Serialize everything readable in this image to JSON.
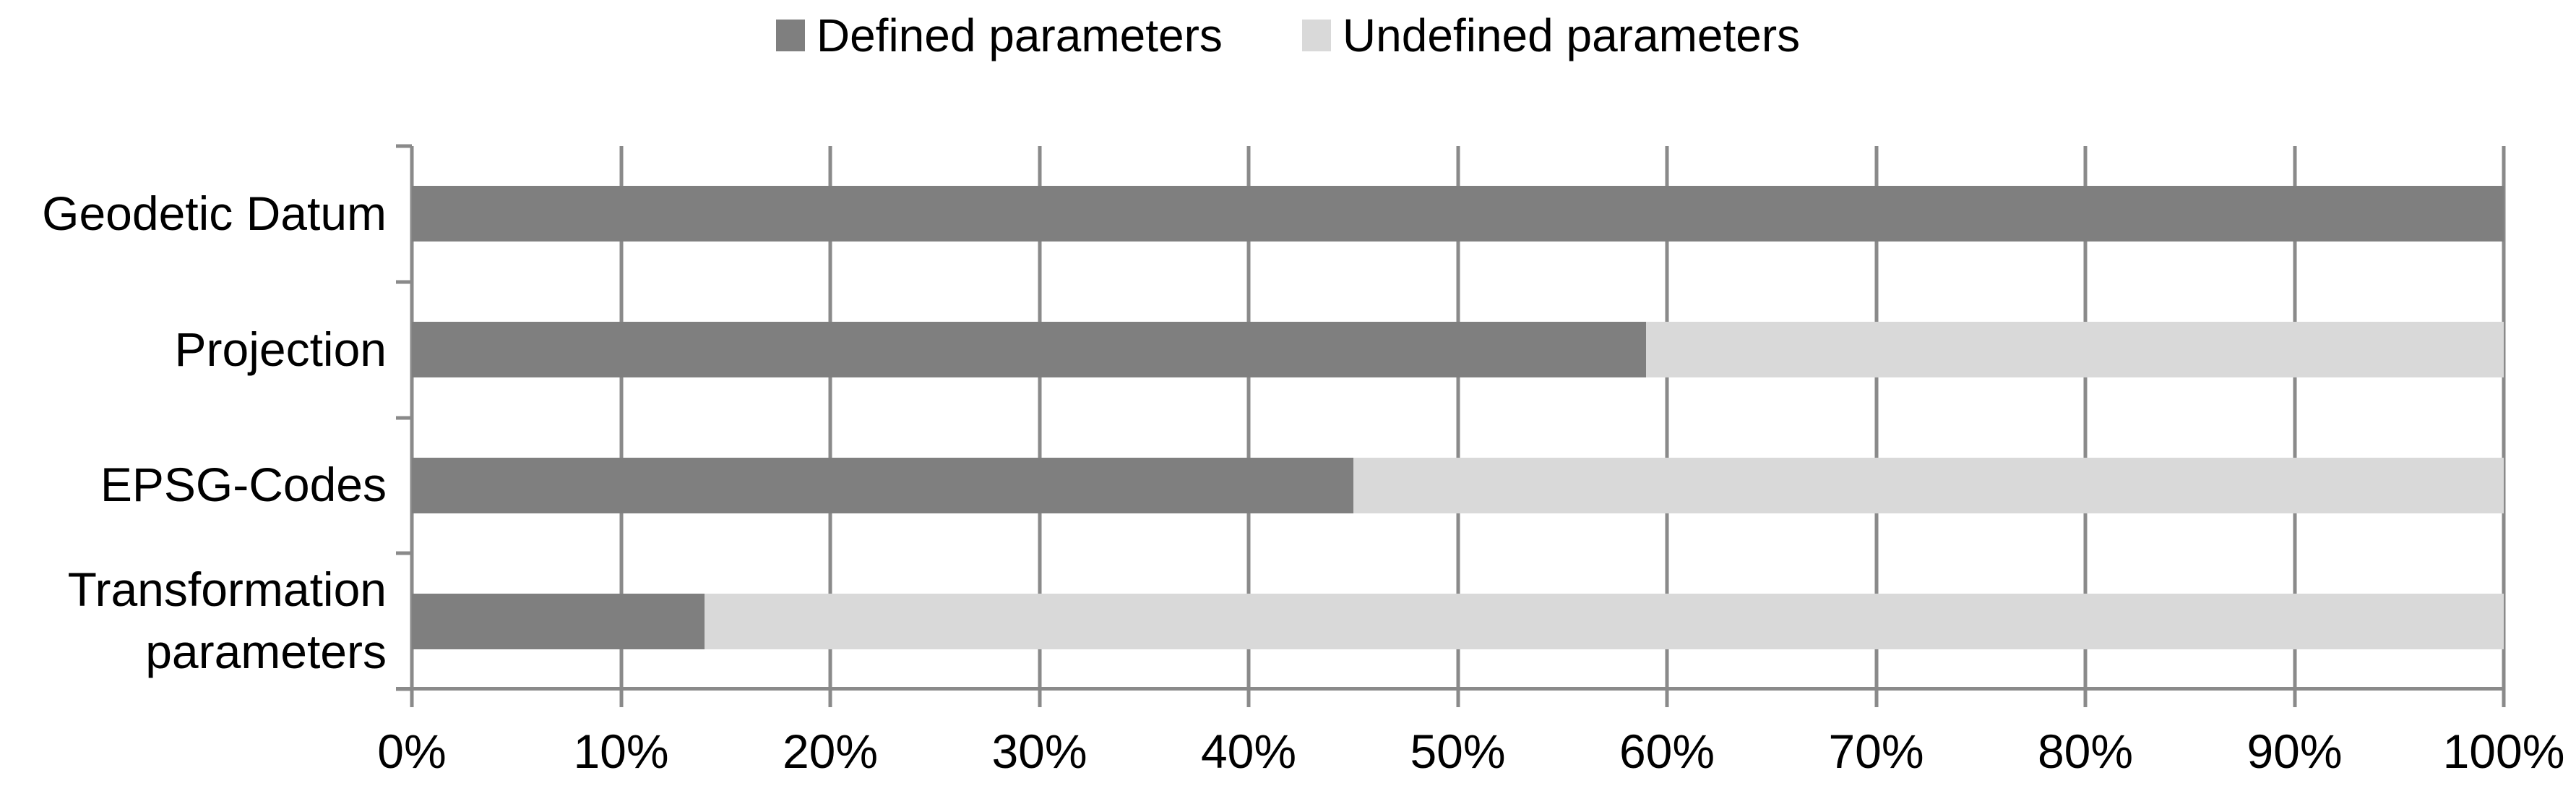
{
  "chart_data": {
    "type": "bar",
    "orientation": "horizontal",
    "stacked": true,
    "title": "",
    "xlabel": "",
    "ylabel": "",
    "categories": [
      "Geodetic Datum",
      "Projection",
      "EPSG-Codes",
      "Transformation parameters"
    ],
    "series": [
      {
        "name": "Defined parameters",
        "color": "#7f7f7f",
        "values": [
          100,
          59,
          45,
          14
        ]
      },
      {
        "name": "Undefined parameters",
        "color": "#d9d9d9",
        "values": [
          0,
          41,
          55,
          86
        ]
      }
    ],
    "x_ticks": [
      "0%",
      "10%",
      "20%",
      "30%",
      "40%",
      "50%",
      "60%",
      "70%",
      "80%",
      "90%",
      "100%"
    ],
    "xlim": [
      0,
      100
    ],
    "grid": true,
    "legend_position": "top",
    "axis_color": "#8a8a8a",
    "text_color": "#000000",
    "background_color": "#ffffff"
  }
}
